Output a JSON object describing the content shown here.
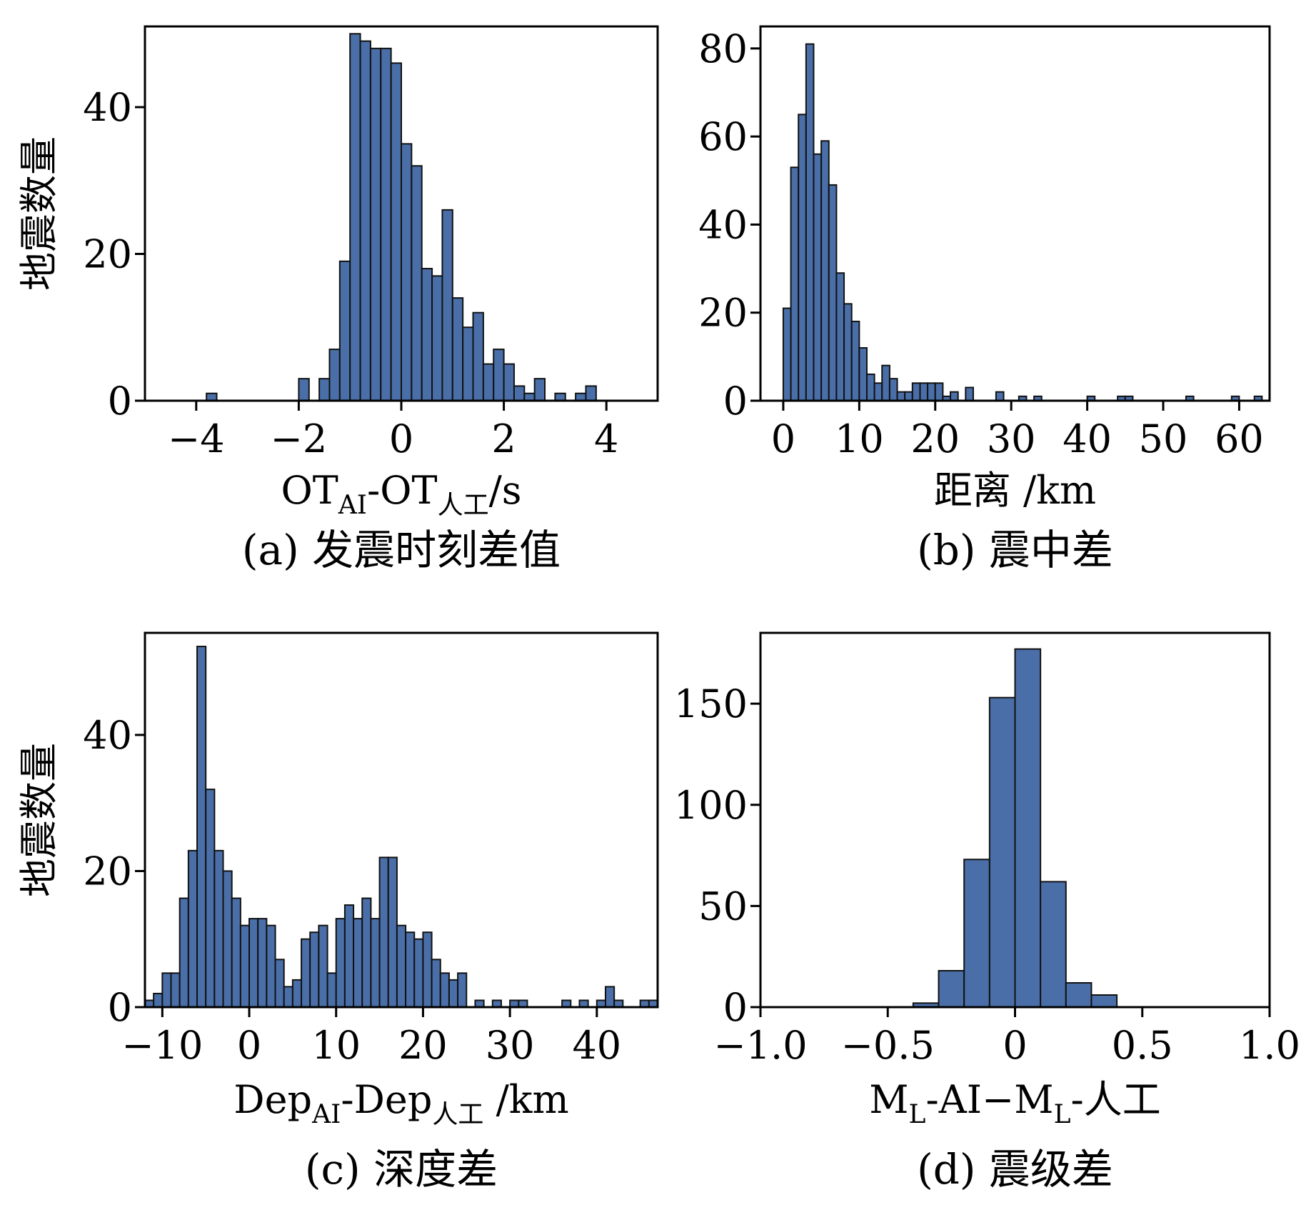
{
  "chart_data": [
    {
      "id": "a",
      "type": "bar",
      "title": "(a) 发震时刻差值",
      "xlabel_parts": [
        {
          "text": "OT",
          "sub": false
        },
        {
          "text": "AI",
          "sub": true
        },
        {
          "text": "-OT",
          "sub": false
        },
        {
          "text": "人工",
          "sub": true
        },
        {
          "text": "/s",
          "sub": false
        }
      ],
      "ylabel": "地震数量",
      "xlim": [
        -5,
        5
      ],
      "ylim": [
        0,
        51
      ],
      "xticks": [
        -4,
        -2,
        0,
        2,
        4
      ],
      "xtick_labels": [
        "−4",
        "−2",
        "0",
        "2",
        "4"
      ],
      "yticks": [
        0,
        20,
        40
      ],
      "ytick_labels": [
        "0",
        "20",
        "40"
      ],
      "bin_width": 0.2,
      "bins": [
        {
          "x": -3.8,
          "y": 1
        },
        {
          "x": -2.0,
          "y": 3
        },
        {
          "x": -1.6,
          "y": 3
        },
        {
          "x": -1.4,
          "y": 7
        },
        {
          "x": -1.2,
          "y": 19
        },
        {
          "x": -1.0,
          "y": 50
        },
        {
          "x": -0.8,
          "y": 49
        },
        {
          "x": -0.6,
          "y": 48
        },
        {
          "x": -0.4,
          "y": 48
        },
        {
          "x": -0.2,
          "y": 46
        },
        {
          "x": 0.0,
          "y": 35
        },
        {
          "x": 0.2,
          "y": 32
        },
        {
          "x": 0.4,
          "y": 18
        },
        {
          "x": 0.6,
          "y": 17
        },
        {
          "x": 0.8,
          "y": 26
        },
        {
          "x": 1.0,
          "y": 14
        },
        {
          "x": 1.2,
          "y": 10
        },
        {
          "x": 1.4,
          "y": 12
        },
        {
          "x": 1.6,
          "y": 5
        },
        {
          "x": 1.8,
          "y": 7
        },
        {
          "x": 2.0,
          "y": 5
        },
        {
          "x": 2.2,
          "y": 2
        },
        {
          "x": 2.4,
          "y": 1
        },
        {
          "x": 2.6,
          "y": 3
        },
        {
          "x": 3.0,
          "y": 1
        },
        {
          "x": 3.4,
          "y": 1
        },
        {
          "x": 3.6,
          "y": 2
        }
      ]
    },
    {
      "id": "b",
      "type": "bar",
      "title": "(b) 震中差",
      "xlabel_parts": [
        {
          "text": "距离 /km",
          "sub": false
        }
      ],
      "ylabel": "",
      "xlim": [
        -3,
        64
      ],
      "ylim": [
        0,
        85
      ],
      "xticks": [
        0,
        10,
        20,
        30,
        40,
        50,
        60
      ],
      "xtick_labels": [
        "0",
        "10",
        "20",
        "30",
        "40",
        "50",
        "60"
      ],
      "yticks": [
        0,
        20,
        40,
        60,
        80
      ],
      "ytick_labels": [
        "0",
        "20",
        "40",
        "60",
        "80"
      ],
      "bin_width": 1,
      "bins": [
        {
          "x": 0,
          "y": 21
        },
        {
          "x": 1,
          "y": 53
        },
        {
          "x": 2,
          "y": 65
        },
        {
          "x": 3,
          "y": 81
        },
        {
          "x": 4,
          "y": 56
        },
        {
          "x": 5,
          "y": 59
        },
        {
          "x": 6,
          "y": 49
        },
        {
          "x": 7,
          "y": 29
        },
        {
          "x": 8,
          "y": 22
        },
        {
          "x": 9,
          "y": 18
        },
        {
          "x": 10,
          "y": 12
        },
        {
          "x": 11,
          "y": 6
        },
        {
          "x": 12,
          "y": 4
        },
        {
          "x": 13,
          "y": 8
        },
        {
          "x": 14,
          "y": 5
        },
        {
          "x": 15,
          "y": 2
        },
        {
          "x": 16,
          "y": 2
        },
        {
          "x": 17,
          "y": 4
        },
        {
          "x": 18,
          "y": 4
        },
        {
          "x": 19,
          "y": 4
        },
        {
          "x": 20,
          "y": 4
        },
        {
          "x": 21,
          "y": 1
        },
        {
          "x": 22,
          "y": 2
        },
        {
          "x": 24,
          "y": 3
        },
        {
          "x": 28,
          "y": 2
        },
        {
          "x": 31,
          "y": 1
        },
        {
          "x": 33,
          "y": 1
        },
        {
          "x": 40,
          "y": 1
        },
        {
          "x": 44,
          "y": 1
        },
        {
          "x": 45,
          "y": 1
        },
        {
          "x": 53,
          "y": 1
        },
        {
          "x": 59,
          "y": 1
        },
        {
          "x": 62,
          "y": 1
        }
      ]
    },
    {
      "id": "c",
      "type": "bar",
      "title": "(c) 深度差",
      "xlabel_parts": [
        {
          "text": "Dep",
          "sub": false
        },
        {
          "text": "AI",
          "sub": true
        },
        {
          "text": "-Dep",
          "sub": false
        },
        {
          "text": "人工",
          "sub": true
        },
        {
          "text": " /km",
          "sub": false
        }
      ],
      "ylabel": "地震数量",
      "xlim": [
        -12,
        47
      ],
      "ylim": [
        0,
        55
      ],
      "xticks": [
        -10,
        0,
        10,
        20,
        30,
        40
      ],
      "xtick_labels": [
        "−10",
        "0",
        "10",
        "20",
        "30",
        "40"
      ],
      "yticks": [
        0,
        20,
        40
      ],
      "ytick_labels": [
        "0",
        "20",
        "40"
      ],
      "bin_width": 1,
      "bins": [
        {
          "x": -12,
          "y": 1
        },
        {
          "x": -11,
          "y": 2
        },
        {
          "x": -10,
          "y": 5
        },
        {
          "x": -9,
          "y": 5
        },
        {
          "x": -8,
          "y": 16
        },
        {
          "x": -7,
          "y": 23
        },
        {
          "x": -6,
          "y": 53
        },
        {
          "x": -5,
          "y": 32
        },
        {
          "x": -4,
          "y": 23
        },
        {
          "x": -3,
          "y": 20
        },
        {
          "x": -2,
          "y": 16
        },
        {
          "x": -1,
          "y": 12
        },
        {
          "x": 0,
          "y": 13
        },
        {
          "x": 1,
          "y": 13
        },
        {
          "x": 2,
          "y": 12
        },
        {
          "x": 3,
          "y": 7
        },
        {
          "x": 4,
          "y": 3
        },
        {
          "x": 5,
          "y": 4
        },
        {
          "x": 6,
          "y": 10
        },
        {
          "x": 7,
          "y": 11
        },
        {
          "x": 8,
          "y": 12
        },
        {
          "x": 9,
          "y": 5
        },
        {
          "x": 10,
          "y": 13
        },
        {
          "x": 11,
          "y": 15
        },
        {
          "x": 12,
          "y": 13
        },
        {
          "x": 13,
          "y": 16
        },
        {
          "x": 14,
          "y": 13
        },
        {
          "x": 15,
          "y": 22
        },
        {
          "x": 16,
          "y": 22
        },
        {
          "x": 17,
          "y": 12
        },
        {
          "x": 18,
          "y": 11
        },
        {
          "x": 19,
          "y": 10
        },
        {
          "x": 20,
          "y": 11
        },
        {
          "x": 21,
          "y": 7
        },
        {
          "x": 22,
          "y": 5
        },
        {
          "x": 23,
          "y": 4
        },
        {
          "x": 24,
          "y": 5
        },
        {
          "x": 26,
          "y": 1
        },
        {
          "x": 28,
          "y": 1
        },
        {
          "x": 30,
          "y": 1
        },
        {
          "x": 31,
          "y": 1
        },
        {
          "x": 36,
          "y": 1
        },
        {
          "x": 38,
          "y": 1
        },
        {
          "x": 40,
          "y": 1
        },
        {
          "x": 41,
          "y": 3
        },
        {
          "x": 42,
          "y": 1
        },
        {
          "x": 45,
          "y": 1
        },
        {
          "x": 46,
          "y": 1
        }
      ]
    },
    {
      "id": "d",
      "type": "bar",
      "title": "(d) 震级差",
      "xlabel_parts": [
        {
          "text": "M",
          "sub": false
        },
        {
          "text": "L",
          "sub": true
        },
        {
          "text": "-AI−M",
          "sub": false
        },
        {
          "text": "L",
          "sub": true
        },
        {
          "text": "-人工",
          "sub": false
        }
      ],
      "ylabel": "",
      "xlim": [
        -1.0,
        1.0
      ],
      "ylim": [
        0,
        185
      ],
      "xticks": [
        -1.0,
        -0.5,
        0,
        0.5,
        1.0
      ],
      "xtick_labels": [
        "−1.0",
        "−0.5",
        "0",
        "0.5",
        "1.0"
      ],
      "yticks": [
        0,
        50,
        100,
        150
      ],
      "ytick_labels": [
        "0",
        "50",
        "100",
        "150"
      ],
      "bin_width": 0.1,
      "bins": [
        {
          "x": -0.4,
          "y": 2
        },
        {
          "x": -0.3,
          "y": 18
        },
        {
          "x": -0.2,
          "y": 73
        },
        {
          "x": -0.1,
          "y": 153
        },
        {
          "x": 0.0,
          "y": 177
        },
        {
          "x": 0.1,
          "y": 62
        },
        {
          "x": 0.2,
          "y": 12
        },
        {
          "x": 0.3,
          "y": 6
        }
      ]
    }
  ]
}
